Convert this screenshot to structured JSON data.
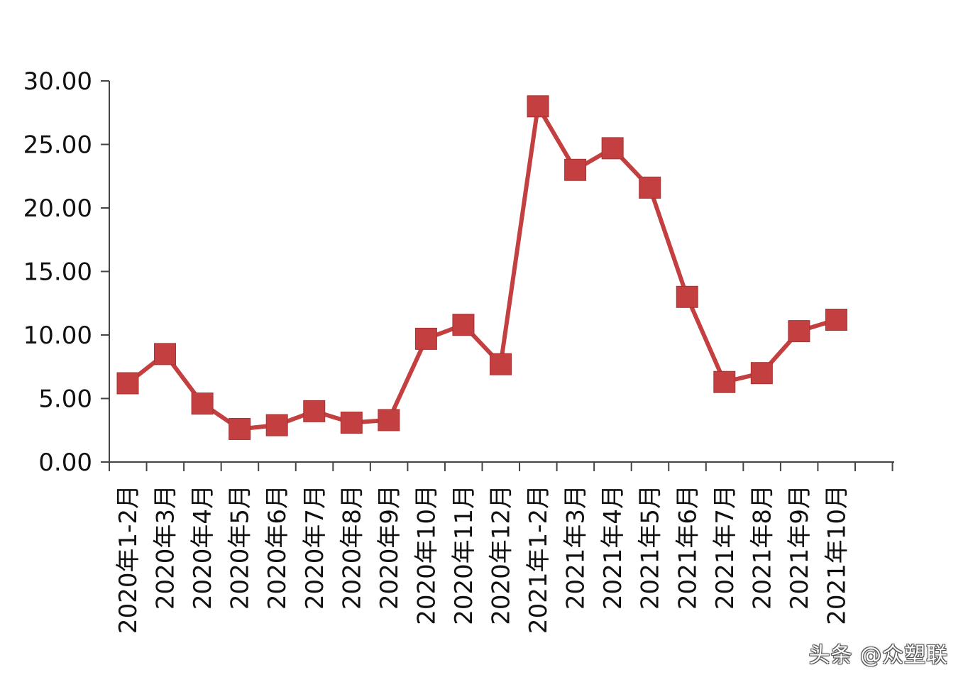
{
  "chart_data": {
    "type": "line",
    "categories": [
      "2020年1-2月",
      "2020年3月",
      "2020年4月",
      "2020年5月",
      "2020年6月",
      "2020年7月",
      "2020年8月",
      "2020年9月",
      "2020年10月",
      "2020年11月",
      "2020年12月",
      "2021年1-2月",
      "2021年3月",
      "2021年4月",
      "2021年5月",
      "2021年6月",
      "2021年7月",
      "2021年8月",
      "2021年9月",
      "2021年10月"
    ],
    "series": [
      {
        "values": [
          6.2,
          8.5,
          4.6,
          2.6,
          2.9,
          4.0,
          3.1,
          3.3,
          9.7,
          10.8,
          7.7,
          28.0,
          23.0,
          24.7,
          21.6,
          13.0,
          6.3,
          7.0,
          10.3,
          11.2
        ],
        "color": "#c44040"
      }
    ],
    "yticks": [
      "0.00",
      "5.00",
      "10.00",
      "15.00",
      "20.00",
      "25.00",
      "30.00"
    ],
    "ylim": [
      0,
      30
    ],
    "xlabel": "",
    "ylabel": "",
    "title": "",
    "grid": false,
    "legend": false
  },
  "watermark": "头条 @众塑联"
}
